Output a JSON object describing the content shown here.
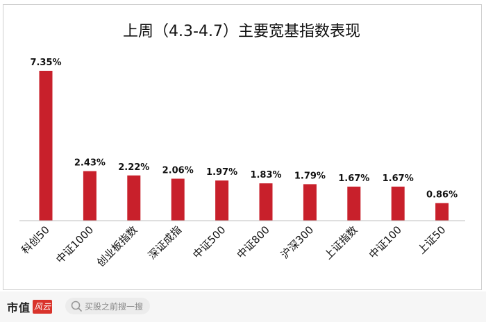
{
  "chart_data": {
    "type": "bar",
    "title": "上周（4.3-4.7）主要宽基指数表现",
    "categories": [
      "科创50",
      "中证1000",
      "创业板指数",
      "深证成指",
      "中证500",
      "中证800",
      "沪深300",
      "上证指数",
      "中证100",
      "上证50"
    ],
    "values": [
      7.35,
      2.43,
      2.22,
      2.06,
      1.97,
      1.83,
      1.79,
      1.67,
      1.67,
      0.86
    ],
    "value_labels": [
      "7.35%",
      "2.43%",
      "2.22%",
      "2.06%",
      "1.97%",
      "1.83%",
      "1.79%",
      "1.67%",
      "1.67%",
      "0.86%"
    ],
    "ylim": [
      0,
      7.35
    ],
    "grid": false,
    "bar_color": "#c8202b"
  },
  "footer": {
    "brand": "市值",
    "brand_seal": "风云",
    "search_placeholder": "买股之前搜一搜"
  }
}
